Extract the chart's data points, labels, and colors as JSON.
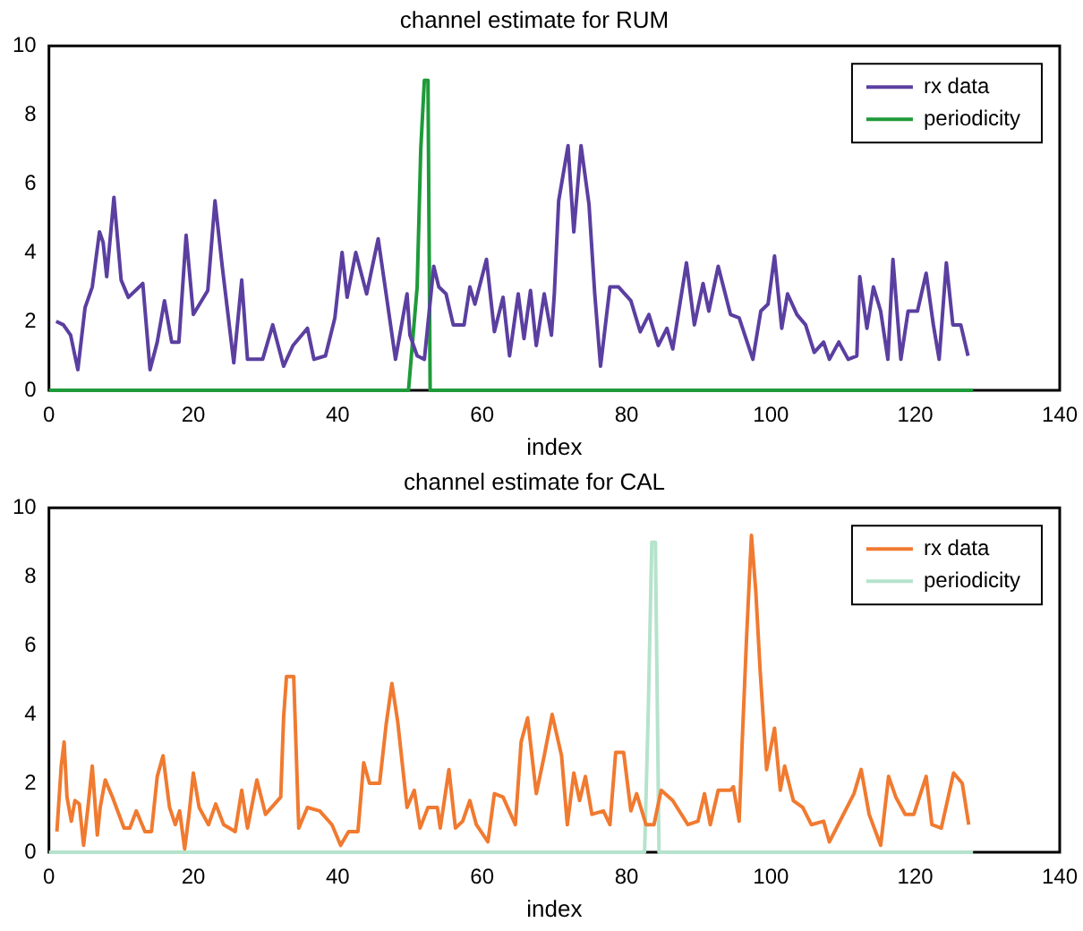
{
  "chart_data": [
    {
      "type": "line",
      "title": "channel estimate for RUM",
      "xlabel": "index",
      "xlim": [
        0,
        140
      ],
      "xticks": [
        0,
        20,
        40,
        60,
        80,
        100,
        120,
        140
      ],
      "ylim": [
        0,
        10
      ],
      "yticks": [
        0,
        2,
        4,
        6,
        8,
        10
      ],
      "legend": "top right",
      "grid": false,
      "series": [
        {
          "name": "rx data",
          "color": "#5b3fa0",
          "x": [
            1,
            2,
            3,
            4,
            5,
            6,
            7,
            7.5,
            8,
            9,
            10,
            11,
            13,
            14,
            15,
            16,
            17,
            18,
            19,
            20,
            22,
            23,
            24,
            25.6,
            26.7,
            27.5,
            29.6,
            31,
            32.5,
            33.8,
            35.8,
            36.7,
            38.3,
            39.6,
            40.6,
            41.3,
            42.5,
            44,
            45.6,
            46.7,
            48,
            49.6,
            50,
            51,
            52,
            53.3,
            54,
            55,
            56,
            57.5,
            58.3,
            59,
            60.6,
            61.7,
            62.9,
            63.8,
            65,
            65.8,
            66.7,
            67.5,
            68.6,
            69.6,
            70,
            70.6,
            71.9,
            72.7,
            73.7,
            74.8,
            75.6,
            76.4,
            77.7,
            78.9,
            80.6,
            81.9,
            83.1,
            84.4,
            85.6,
            86.4,
            88.3,
            89.4,
            90.6,
            91.4,
            92.7,
            94.4,
            95.6,
            97.5,
            98.6,
            99.6,
            100.5,
            101.5,
            102.3,
            103.6,
            104.8,
            106,
            107.3,
            108.1,
            109.4,
            110.7,
            111.9,
            112.3,
            113.3,
            114.2,
            115.2,
            116.2,
            116.9,
            118,
            119,
            120.3,
            121.5,
            122.5,
            123.3,
            124.3,
            125.2,
            126.3,
            127.3
          ],
          "values": [
            2.0,
            1.9,
            1.6,
            0.6,
            2.4,
            3.0,
            4.6,
            4.3,
            3.3,
            5.6,
            3.2,
            2.7,
            3.1,
            0.6,
            1.4,
            2.6,
            1.4,
            1.4,
            4.5,
            2.2,
            2.9,
            5.5,
            3.6,
            0.8,
            3.2,
            0.9,
            0.9,
            1.9,
            0.7,
            1.3,
            1.8,
            0.9,
            1.0,
            2.1,
            4.0,
            2.7,
            4.0,
            2.8,
            4.4,
            2.8,
            0.9,
            2.8,
            1.6,
            1.0,
            0.9,
            3.6,
            3.0,
            2.8,
            1.9,
            1.9,
            3.0,
            2.5,
            3.8,
            1.7,
            2.7,
            1.0,
            2.8,
            1.5,
            2.9,
            1.3,
            2.8,
            1.6,
            2.8,
            5.5,
            7.1,
            4.6,
            7.1,
            5.4,
            2.8,
            0.7,
            3.0,
            3.0,
            2.6,
            1.7,
            2.2,
            1.3,
            1.8,
            1.2,
            3.7,
            1.9,
            3.1,
            2.3,
            3.6,
            2.2,
            2.1,
            0.9,
            2.3,
            2.5,
            3.9,
            1.8,
            2.8,
            2.2,
            1.9,
            1.1,
            1.4,
            0.9,
            1.4,
            0.9,
            1.0,
            3.3,
            1.8,
            3.0,
            2.3,
            0.9,
            3.8,
            0.9,
            2.3,
            2.3,
            3.4,
            1.9,
            0.9,
            3.7,
            1.9,
            1.9,
            1.0
          ]
        },
        {
          "name": "periodicity",
          "color": "#1f9a3a",
          "x": [
            0,
            49.8,
            51,
            51.5,
            52,
            52.5,
            52.8,
            128
          ],
          "values": [
            0,
            0,
            3,
            7,
            9,
            9,
            0,
            0
          ]
        }
      ]
    },
    {
      "type": "line",
      "title": "channel estimate for CAL",
      "xlabel": "index",
      "xlim": [
        0,
        140
      ],
      "xticks": [
        0,
        20,
        40,
        60,
        80,
        100,
        120,
        140
      ],
      "ylim": [
        0,
        10
      ],
      "yticks": [
        0,
        2,
        4,
        6,
        8,
        10
      ],
      "legend": "top right",
      "grid": false,
      "series": [
        {
          "name": "rx data",
          "color": "#f07a30",
          "x": [
            1.1,
            1.7,
            2.1,
            2.5,
            3.1,
            3.6,
            4.2,
            4.8,
            5.4,
            6,
            6.7,
            7.1,
            7.8,
            8.8,
            10.4,
            11.2,
            12.1,
            13.3,
            14.2,
            15,
            15.8,
            16.7,
            17.5,
            18.1,
            18.8,
            19.4,
            20,
            20.8,
            22.1,
            23.1,
            24.2,
            25.8,
            26.7,
            27.5,
            28.8,
            30,
            32.1,
            32.5,
            32.9,
            33.9,
            34.6,
            35.8,
            37.5,
            39.2,
            40.4,
            41.5,
            42.8,
            43.6,
            44.4,
            45.8,
            46.7,
            47.5,
            48.3,
            49.6,
            50.6,
            51.4,
            52.5,
            53.8,
            54.2,
            55.4,
            56.3,
            57.3,
            58.3,
            59.2,
            60.8,
            61.7,
            62.9,
            64.6,
            65.4,
            66.3,
            67.5,
            68.6,
            69.7,
            71,
            71.8,
            72.7,
            73.5,
            74.3,
            75.2,
            76.8,
            77.7,
            78.5,
            79.6,
            80.6,
            81.4,
            82.7,
            83.8,
            84.8,
            86.4,
            88.5,
            89.9,
            90.8,
            91.6,
            92.7,
            94.4,
            94.8,
            95.6,
            96,
            96.6,
            97.3,
            97.9,
            98.5,
            99.4,
            100.5,
            101.3,
            101.9,
            103.1,
            104.4,
            105.6,
            107.3,
            108.1,
            109.8,
            111.5,
            112.5,
            113.6,
            115.2,
            116.3,
            117.3,
            118.6,
            119.8,
            121.5,
            122.3,
            123.6,
            125.3,
            126.5,
            127.4
          ],
          "values": [
            0.6,
            2.5,
            3.2,
            1.6,
            0.9,
            1.5,
            1.4,
            0.2,
            1.3,
            2.5,
            0.5,
            1.3,
            2.1,
            1.6,
            0.7,
            0.7,
            1.2,
            0.6,
            0.6,
            2.2,
            2.8,
            1.3,
            0.8,
            1.2,
            0.1,
            1.1,
            2.3,
            1.3,
            0.8,
            1.4,
            0.8,
            0.6,
            1.8,
            0.7,
            2.1,
            1.1,
            1.6,
            3.9,
            5.1,
            5.1,
            0.7,
            1.3,
            1.2,
            0.8,
            0.2,
            0.6,
            0.6,
            2.6,
            2.0,
            2.0,
            3.7,
            4.9,
            3.8,
            1.3,
            1.8,
            0.7,
            1.3,
            1.3,
            0.7,
            2.4,
            0.7,
            0.9,
            1.5,
            0.8,
            0.3,
            1.7,
            1.6,
            0.8,
            3.2,
            3.9,
            1.7,
            2.8,
            4.0,
            2.8,
            0.8,
            2.3,
            1.5,
            2.2,
            1.1,
            1.2,
            0.8,
            2.9,
            2.9,
            1.2,
            1.7,
            0.8,
            0.8,
            1.8,
            1.5,
            0.8,
            0.9,
            1.7,
            0.8,
            1.8,
            1.8,
            1.9,
            0.9,
            3.1,
            6.1,
            9.2,
            7.6,
            5.3,
            2.4,
            3.6,
            1.8,
            2.5,
            1.5,
            1.3,
            0.8,
            0.9,
            0.3,
            1.0,
            1.7,
            2.4,
            1.1,
            0.2,
            2.2,
            1.6,
            1.1,
            1.1,
            2.2,
            0.8,
            0.7,
            2.3,
            2.0,
            0.8
          ]
        },
        {
          "name": "periodicity",
          "color": "#b5e3cc",
          "x": [
            0,
            82.5,
            83,
            83.5,
            84,
            84.5,
            128
          ],
          "values": [
            0,
            0,
            4,
            9,
            9,
            0,
            0
          ]
        }
      ]
    }
  ]
}
